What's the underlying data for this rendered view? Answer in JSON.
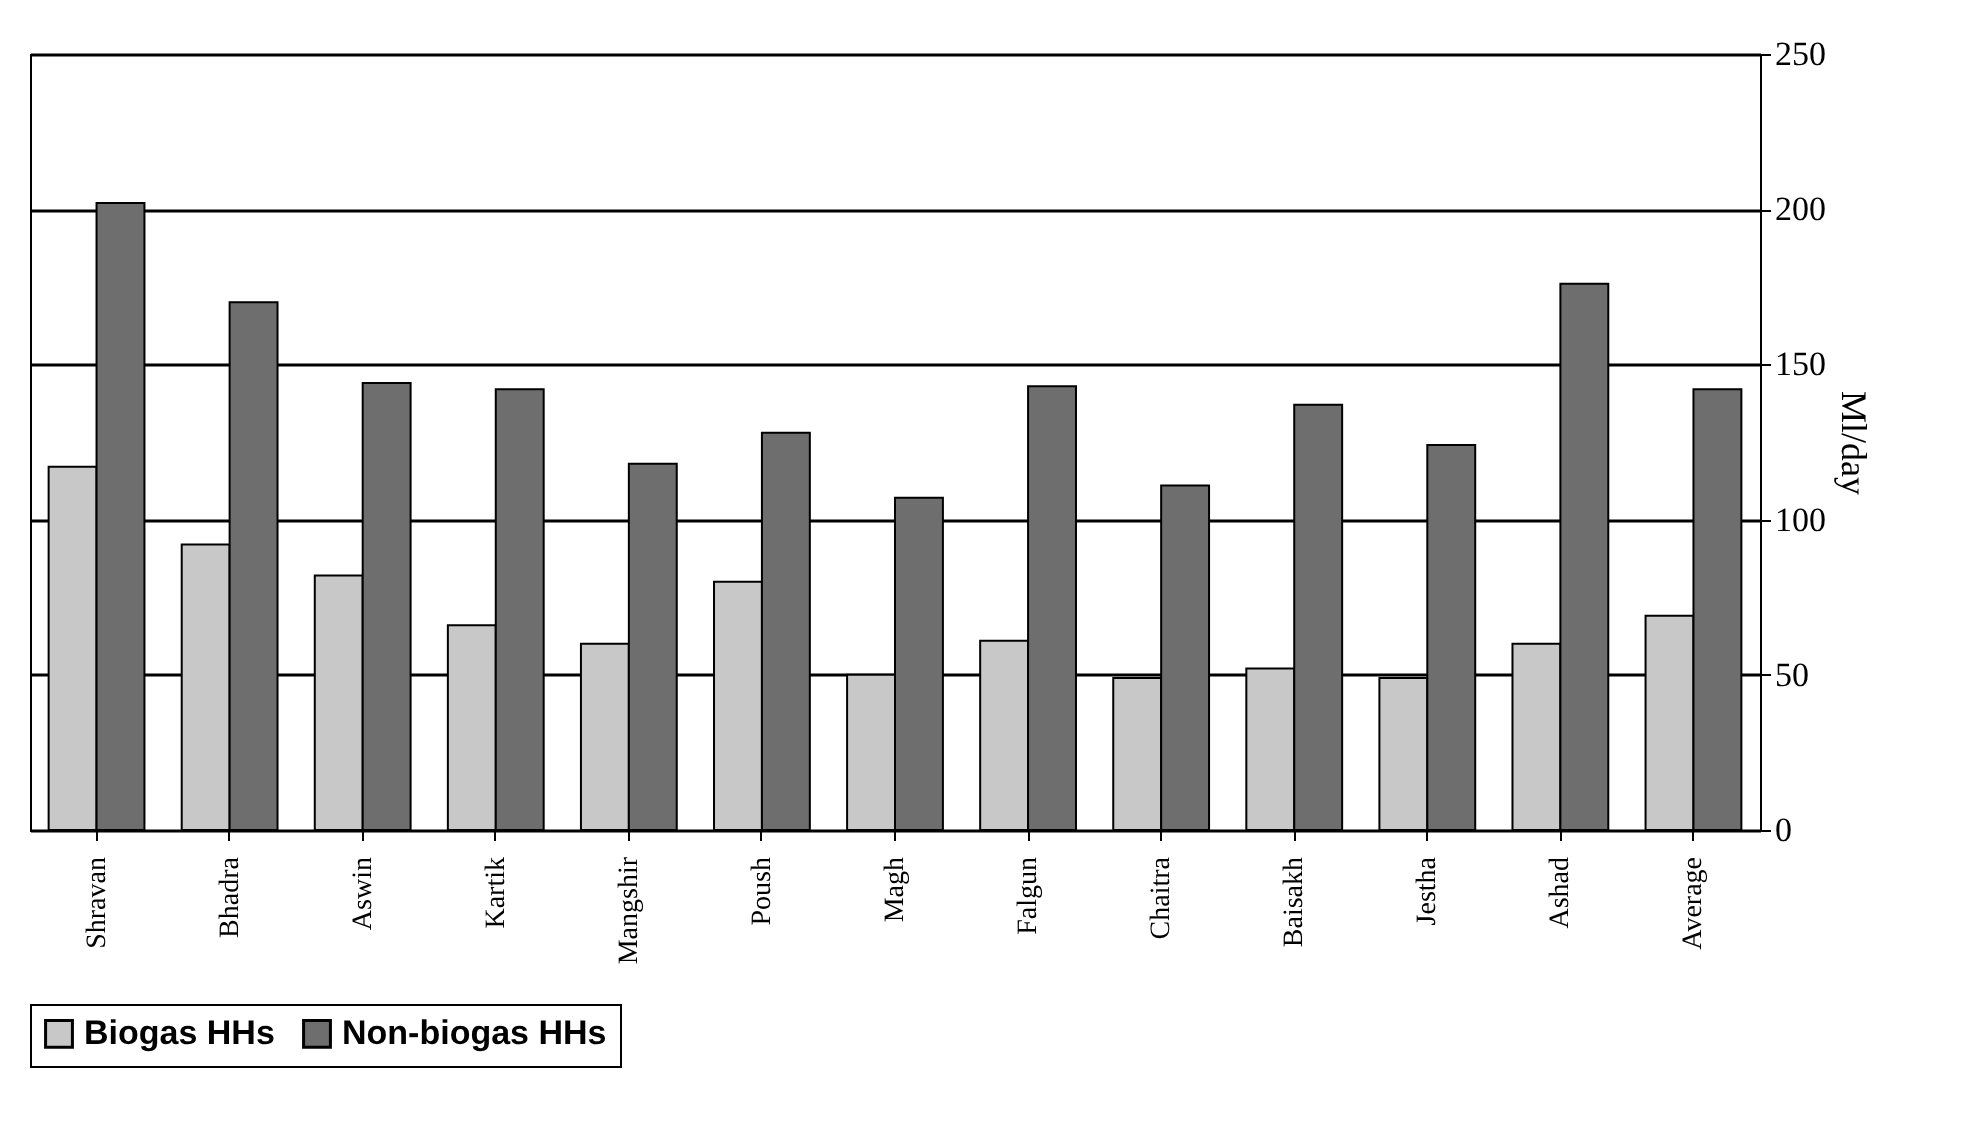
{
  "chart_data": {
    "type": "bar",
    "ylabel": "Ml/day",
    "categories": [
      "Shravan",
      "Bhadra",
      "Aswin",
      "Kartik",
      "Mangshir",
      "Poush",
      "Magh",
      "Falgun",
      "Chaitra",
      "Baisakh",
      "Jestha",
      "Ashad",
      "Average"
    ],
    "series": [
      {
        "name": "Biogas HHs",
        "color": "#c8c8c8",
        "values": [
          117,
          92,
          82,
          66,
          60,
          80,
          50,
          61,
          49,
          52,
          49,
          60,
          69
        ]
      },
      {
        "name": "Non-biogas HHs",
        "color": "#6e6e6e",
        "values": [
          202,
          170,
          144,
          142,
          118,
          128,
          107,
          143,
          111,
          137,
          124,
          176,
          142
        ]
      }
    ],
    "ylim": [
      0,
      250
    ],
    "yticks": [
      0,
      50,
      100,
      150,
      200,
      250
    ],
    "grid": "y",
    "legend": "bottom"
  }
}
